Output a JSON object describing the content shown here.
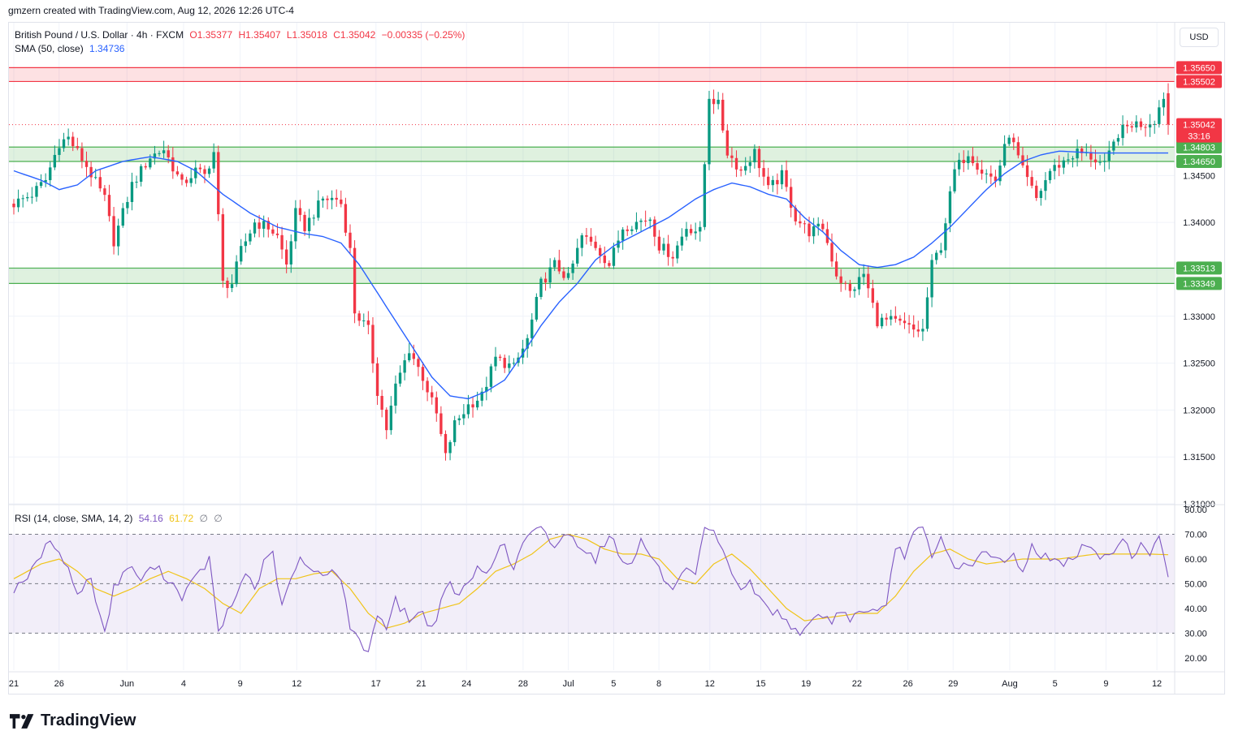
{
  "header": {
    "attribution": "gmzern created with TradingView.com, Aug 12, 2026 12:26 UTC-4"
  },
  "legend": {
    "symbol": "British Pound / U.S. Dollar · 4h · FXCM",
    "open": "O1.35377",
    "high": "H1.35407",
    "low": "L1.35018",
    "close": "C1.35042",
    "change": "−0.00335 (−0.25%)",
    "sma_label": "SMA (50, close)",
    "sma_value": "1.34736",
    "rsi_label": "RSI (14, close, SMA, 14, 2)",
    "rsi_value": "54.16",
    "rsi_ma_value": "61.72",
    "rsi_extra1": "∅",
    "rsi_extra2": "∅"
  },
  "currency": "USD",
  "logo_text": "TradingView",
  "colors": {
    "up": "#089981",
    "down": "#f23645",
    "sma": "#2962ff",
    "rsi": "#7e57c2",
    "rsi_ma": "#f0c419",
    "zone_green": "#4caf50",
    "zone_red": "#f23645"
  },
  "chart_data": {
    "type": "candlestick",
    "timeframe": "4h",
    "instrument": "British Pound / U.S. Dollar",
    "price_axis": {
      "ylim": [
        1.31,
        1.358
      ],
      "ticks": [
        "1.31000",
        "1.31500",
        "1.32000",
        "1.32500",
        "1.33000",
        "1.33500",
        "1.34000",
        "1.34500"
      ]
    },
    "x_axis": {
      "labels": [
        "21",
        "26",
        "Jun",
        "4",
        "9",
        "12",
        "17",
        "21",
        "24",
        "28",
        "Jul",
        "5",
        "8",
        "12",
        "15",
        "19",
        "22",
        "26",
        "29",
        "Aug",
        "5",
        "9",
        "12"
      ],
      "label_index": [
        0,
        8,
        20,
        30,
        40,
        50,
        64,
        72,
        80,
        90,
        98,
        106,
        114,
        123,
        132,
        140,
        149,
        158,
        166,
        176,
        184,
        193,
        202
      ],
      "total_bars": 204
    },
    "price_anchors": [
      [
        0,
        1.342
      ],
      [
        4,
        1.343
      ],
      [
        7,
        1.3445
      ],
      [
        10,
        1.3485
      ],
      [
        12,
        1.349
      ],
      [
        16,
        1.346
      ],
      [
        20,
        1.3425
      ],
      [
        22,
        1.338
      ],
      [
        26,
        1.344
      ],
      [
        30,
        1.347
      ],
      [
        33,
        1.3478
      ],
      [
        37,
        1.344
      ],
      [
        40,
        1.3455
      ],
      [
        42,
        1.345
      ],
      [
        44,
        1.3475
      ],
      [
        46,
        1.3335
      ],
      [
        48,
        1.3335
      ],
      [
        50,
        1.337
      ],
      [
        53,
        1.34
      ],
      [
        56,
        1.3395
      ],
      [
        58,
        1.3385
      ],
      [
        60,
        1.3355
      ],
      [
        62,
        1.341
      ],
      [
        64,
        1.3395
      ],
      [
        66,
        1.341
      ],
      [
        68,
        1.3425
      ],
      [
        71,
        1.3425
      ],
      [
        72,
        1.342
      ],
      [
        74,
        1.337
      ],
      [
        75,
        1.3305
      ],
      [
        78,
        1.3285
      ],
      [
        80,
        1.322
      ],
      [
        82,
        1.318
      ],
      [
        84,
        1.3225
      ],
      [
        87,
        1.3265
      ],
      [
        90,
        1.3235
      ],
      [
        93,
        1.3195
      ],
      [
        95,
        1.315
      ],
      [
        97,
        1.3185
      ],
      [
        100,
        1.3205
      ],
      [
        103,
        1.3215
      ],
      [
        106,
        1.3255
      ],
      [
        110,
        1.3245
      ],
      [
        113,
        1.3275
      ],
      [
        116,
        1.3335
      ],
      [
        119,
        1.3355
      ],
      [
        122,
        1.334
      ],
      [
        125,
        1.3385
      ],
      [
        128,
        1.3375
      ],
      [
        131,
        1.3355
      ],
      [
        134,
        1.3395
      ],
      [
        137,
        1.34
      ],
      [
        140,
        1.3405
      ],
      [
        142,
        1.3375
      ],
      [
        145,
        1.3365
      ],
      [
        148,
        1.3395
      ],
      [
        151,
        1.339
      ],
      [
        153,
        1.3535
      ],
      [
        155,
        1.3525
      ],
      [
        157,
        1.3475
      ],
      [
        160,
        1.3455
      ],
      [
        163,
        1.3475
      ],
      [
        166,
        1.3435
      ],
      [
        169,
        1.345
      ],
      [
        172,
        1.3405
      ],
      [
        175,
        1.339
      ],
      [
        178,
        1.3395
      ],
      [
        181,
        1.3345
      ],
      [
        184,
        1.3325
      ],
      [
        187,
        1.3345
      ],
      [
        190,
        1.3295
      ],
      [
        193,
        1.3295
      ],
      [
        196,
        1.329
      ],
      [
        198,
        1.3285
      ],
      [
        200,
        1.3285
      ],
      [
        202,
        1.3355
      ],
      [
        204,
        1.3375
      ],
      [
        207,
        1.3455
      ],
      [
        210,
        1.3475
      ],
      [
        213,
        1.3455
      ],
      [
        216,
        1.3445
      ],
      [
        219,
        1.3495
      ],
      [
        222,
        1.3455
      ],
      [
        225,
        1.3425
      ],
      [
        228,
        1.3455
      ],
      [
        231,
        1.3465
      ],
      [
        234,
        1.3475
      ],
      [
        237,
        1.347
      ],
      [
        240,
        1.346
      ],
      [
        243,
        1.3495
      ],
      [
        246,
        1.3505
      ],
      [
        249,
        1.3505
      ],
      [
        251,
        1.351
      ],
      [
        253,
        1.3535
      ],
      [
        254,
        1.3504
      ]
    ],
    "sma50_anchors": [
      [
        0,
        1.3455
      ],
      [
        6,
        1.3445
      ],
      [
        10,
        1.3435
      ],
      [
        14,
        1.344
      ],
      [
        18,
        1.3455
      ],
      [
        24,
        1.3465
      ],
      [
        30,
        1.347
      ],
      [
        36,
        1.3465
      ],
      [
        40,
        1.3455
      ],
      [
        46,
        1.343
      ],
      [
        52,
        1.341
      ],
      [
        58,
        1.3395
      ],
      [
        64,
        1.3388
      ],
      [
        68,
        1.3385
      ],
      [
        72,
        1.3378
      ],
      [
        76,
        1.3355
      ],
      [
        80,
        1.3325
      ],
      [
        84,
        1.3295
      ],
      [
        88,
        1.3265
      ],
      [
        92,
        1.3235
      ],
      [
        96,
        1.3215
      ],
      [
        100,
        1.3212
      ],
      [
        104,
        1.322
      ],
      [
        108,
        1.3232
      ],
      [
        112,
        1.326
      ],
      [
        116,
        1.329
      ],
      [
        120,
        1.3315
      ],
      [
        124,
        1.3335
      ],
      [
        128,
        1.336
      ],
      [
        132,
        1.3375
      ],
      [
        136,
        1.3385
      ],
      [
        140,
        1.3395
      ],
      [
        144,
        1.3405
      ],
      [
        150,
        1.3425
      ],
      [
        154,
        1.3435
      ],
      [
        158,
        1.3442
      ],
      [
        162,
        1.3438
      ],
      [
        166,
        1.343
      ],
      [
        170,
        1.3425
      ],
      [
        174,
        1.3405
      ],
      [
        178,
        1.339
      ],
      [
        182,
        1.337
      ],
      [
        186,
        1.3355
      ],
      [
        190,
        1.3352
      ],
      [
        194,
        1.3355
      ],
      [
        198,
        1.3363
      ],
      [
        202,
        1.3378
      ],
      [
        206,
        1.3395
      ],
      [
        210,
        1.3415
      ],
      [
        214,
        1.3435
      ],
      [
        218,
        1.3452
      ],
      [
        222,
        1.3465
      ],
      [
        226,
        1.3472
      ],
      [
        230,
        1.3476
      ],
      [
        234,
        1.3475
      ],
      [
        238,
        1.3474
      ],
      [
        242,
        1.3474
      ],
      [
        246,
        1.3474
      ],
      [
        250,
        1.3474
      ],
      [
        254,
        1.3474
      ]
    ],
    "zones": [
      {
        "type": "resistance",
        "low": 1.35502,
        "high": 1.3565,
        "low_label": "1.35502",
        "high_label": "1.35650"
      },
      {
        "type": "support",
        "low": 1.3465,
        "high": 1.34803,
        "low_label": "1.34650",
        "high_label": "1.34803"
      },
      {
        "type": "support",
        "low": 1.33349,
        "high": 1.33513,
        "low_label": "1.33349",
        "high_label": "1.33513"
      }
    ],
    "last_price": {
      "value": 1.35042,
      "label": "1.35042",
      "countdown": "33:16"
    },
    "rsi": {
      "ylim": [
        15,
        82
      ],
      "ticks": [
        "20.00",
        "30.00",
        "40.00",
        "50.00",
        "60.00",
        "70.00",
        "80.00"
      ],
      "upper": 70,
      "lower": 30,
      "middle": 50,
      "anchors": [
        [
          0,
          48
        ],
        [
          4,
          55
        ],
        [
          7,
          65
        ],
        [
          9,
          66
        ],
        [
          11,
          60
        ],
        [
          14,
          46
        ],
        [
          17,
          52
        ],
        [
          20,
          30
        ],
        [
          22,
          48
        ],
        [
          25,
          57
        ],
        [
          28,
          52
        ],
        [
          31,
          57
        ],
        [
          34,
          52
        ],
        [
          37,
          45
        ],
        [
          40,
          52
        ],
        [
          43,
          60
        ],
        [
          45,
          30
        ],
        [
          47,
          38
        ],
        [
          49,
          45
        ],
        [
          51,
          55
        ],
        [
          53,
          48
        ],
        [
          55,
          58
        ],
        [
          57,
          62
        ],
        [
          59,
          40
        ],
        [
          61,
          52
        ],
        [
          63,
          60
        ],
        [
          65,
          55
        ],
        [
          67,
          55
        ],
        [
          69,
          55
        ],
        [
          71,
          55
        ],
        [
          73,
          45
        ],
        [
          74,
          30
        ],
        [
          76,
          28
        ],
        [
          78,
          22
        ],
        [
          80,
          38
        ],
        [
          82,
          33
        ],
        [
          84,
          43
        ],
        [
          87,
          36
        ],
        [
          90,
          38
        ],
        [
          92,
          32
        ],
        [
          94,
          42
        ],
        [
          96,
          50
        ],
        [
          98,
          45
        ],
        [
          100,
          50
        ],
        [
          102,
          56
        ],
        [
          104,
          55
        ],
        [
          106,
          62
        ],
        [
          108,
          65
        ],
        [
          110,
          55
        ],
        [
          112,
          67
        ],
        [
          114,
          70
        ],
        [
          116,
          72
        ],
        [
          119,
          65
        ],
        [
          121,
          70
        ],
        [
          123,
          68
        ],
        [
          126,
          64
        ],
        [
          128,
          60
        ],
        [
          130,
          67
        ],
        [
          132,
          68
        ],
        [
          134,
          58
        ],
        [
          136,
          60
        ],
        [
          138,
          67
        ],
        [
          140,
          62
        ],
        [
          142,
          56
        ],
        [
          144,
          48
        ],
        [
          146,
          50
        ],
        [
          148,
          55
        ],
        [
          150,
          52
        ],
        [
          152,
          72
        ],
        [
          154,
          70
        ],
        [
          156,
          62
        ],
        [
          158,
          55
        ],
        [
          160,
          48
        ],
        [
          162,
          50
        ],
        [
          164,
          44
        ],
        [
          166,
          40
        ],
        [
          168,
          38
        ],
        [
          170,
          35
        ],
        [
          172,
          32
        ],
        [
          174,
          30
        ],
        [
          176,
          35
        ],
        [
          178,
          38
        ],
        [
          180,
          34
        ],
        [
          182,
          40
        ],
        [
          184,
          36
        ],
        [
          186,
          38
        ],
        [
          188,
          40
        ],
        [
          190,
          38
        ],
        [
          192,
          40
        ],
        [
          194,
          65
        ],
        [
          196,
          62
        ],
        [
          198,
          70
        ],
        [
          200,
          72
        ],
        [
          202,
          60
        ],
        [
          204,
          68
        ],
        [
          206,
          60
        ],
        [
          208,
          56
        ],
        [
          210,
          58
        ],
        [
          212,
          60
        ],
        [
          214,
          62
        ],
        [
          216,
          60
        ],
        [
          218,
          58
        ],
        [
          220,
          62
        ],
        [
          222,
          55
        ],
        [
          224,
          65
        ],
        [
          226,
          62
        ],
        [
          228,
          60
        ],
        [
          230,
          58
        ],
        [
          232,
          60
        ],
        [
          234,
          62
        ],
        [
          236,
          66
        ],
        [
          238,
          62
        ],
        [
          240,
          60
        ],
        [
          242,
          64
        ],
        [
          244,
          68
        ],
        [
          246,
          62
        ],
        [
          248,
          66
        ],
        [
          250,
          60
        ],
        [
          252,
          70
        ],
        [
          254,
          54
        ]
      ],
      "ma_anchors": [
        [
          0,
          52
        ],
        [
          6,
          58
        ],
        [
          10,
          60
        ],
        [
          14,
          55
        ],
        [
          18,
          48
        ],
        [
          22,
          45
        ],
        [
          26,
          48
        ],
        [
          30,
          52
        ],
        [
          34,
          55
        ],
        [
          38,
          52
        ],
        [
          42,
          48
        ],
        [
          46,
          42
        ],
        [
          50,
          38
        ],
        [
          54,
          48
        ],
        [
          58,
          52
        ],
        [
          62,
          52
        ],
        [
          66,
          54
        ],
        [
          70,
          55
        ],
        [
          74,
          48
        ],
        [
          78,
          38
        ],
        [
          82,
          32
        ],
        [
          86,
          34
        ],
        [
          90,
          38
        ],
        [
          94,
          40
        ],
        [
          98,
          42
        ],
        [
          102,
          48
        ],
        [
          106,
          55
        ],
        [
          110,
          58
        ],
        [
          114,
          62
        ],
        [
          118,
          68
        ],
        [
          122,
          70
        ],
        [
          126,
          68
        ],
        [
          130,
          64
        ],
        [
          134,
          62
        ],
        [
          138,
          62
        ],
        [
          142,
          60
        ],
        [
          146,
          52
        ],
        [
          150,
          50
        ],
        [
          154,
          58
        ],
        [
          158,
          62
        ],
        [
          162,
          56
        ],
        [
          166,
          48
        ],
        [
          170,
          40
        ],
        [
          174,
          35
        ],
        [
          178,
          36
        ],
        [
          182,
          37
        ],
        [
          186,
          38
        ],
        [
          190,
          38
        ],
        [
          194,
          45
        ],
        [
          198,
          55
        ],
        [
          202,
          62
        ],
        [
          206,
          64
        ],
        [
          210,
          60
        ],
        [
          214,
          58
        ],
        [
          218,
          59
        ],
        [
          222,
          60
        ],
        [
          226,
          60
        ],
        [
          230,
          60
        ],
        [
          234,
          61
        ],
        [
          238,
          62
        ],
        [
          242,
          62
        ],
        [
          246,
          62
        ],
        [
          250,
          62
        ],
        [
          254,
          61.72
        ]
      ]
    }
  }
}
